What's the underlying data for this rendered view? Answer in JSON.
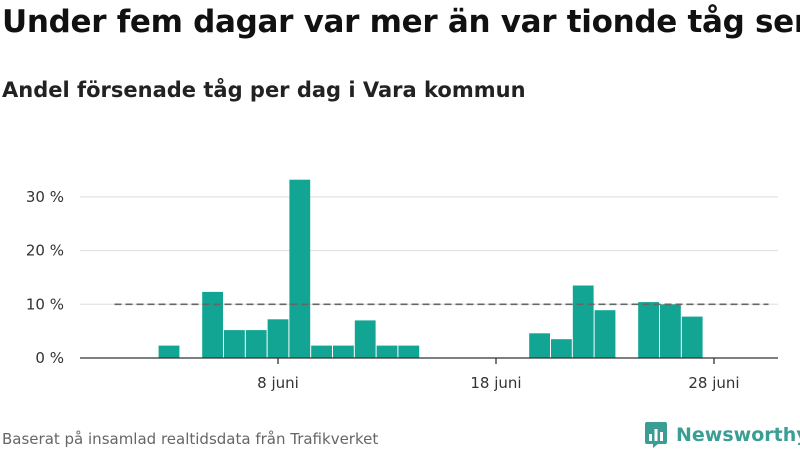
{
  "title": "Under fem dagar var mer än var tionde tåg sent",
  "subtitle": "Andel försenade tåg per dag i Vara kommun",
  "footer": "Baserat på insamlad realtidsdata från Trafikverket",
  "brand": "Newsworthy",
  "colors": {
    "bar": "#12a594",
    "reference": "#666666",
    "grid": "#dddddd",
    "brand": "#3a9e95"
  },
  "chart_data": {
    "type": "bar",
    "x_unit": "day of June",
    "x": [
      1,
      2,
      3,
      4,
      5,
      6,
      7,
      8,
      9,
      10,
      11,
      12,
      13,
      14,
      15,
      16,
      17,
      18,
      19,
      20,
      21,
      22,
      23,
      24,
      25,
      26,
      27,
      28,
      29,
      30
    ],
    "values": [
      null,
      null,
      2.3,
      null,
      12.3,
      5.2,
      5.2,
      7.2,
      33.2,
      2.3,
      2.3,
      7.0,
      2.3,
      2.3,
      null,
      null,
      null,
      null,
      null,
      4.6,
      3.5,
      13.5,
      8.9,
      null,
      10.4,
      10.0,
      7.7,
      null,
      null,
      null
    ],
    "reference_line": 10,
    "reference_line_style": "dashed",
    "ylim": [
      0,
      35
    ],
    "yticks": [
      0,
      10,
      20,
      30
    ],
    "ytick_labels": [
      "0 %",
      "10 %",
      "20 %",
      "30 %"
    ],
    "xticks": [
      8,
      18,
      28
    ],
    "xtick_labels": [
      "8 juni",
      "18 juni",
      "28 juni"
    ],
    "grid": "horizontal"
  }
}
